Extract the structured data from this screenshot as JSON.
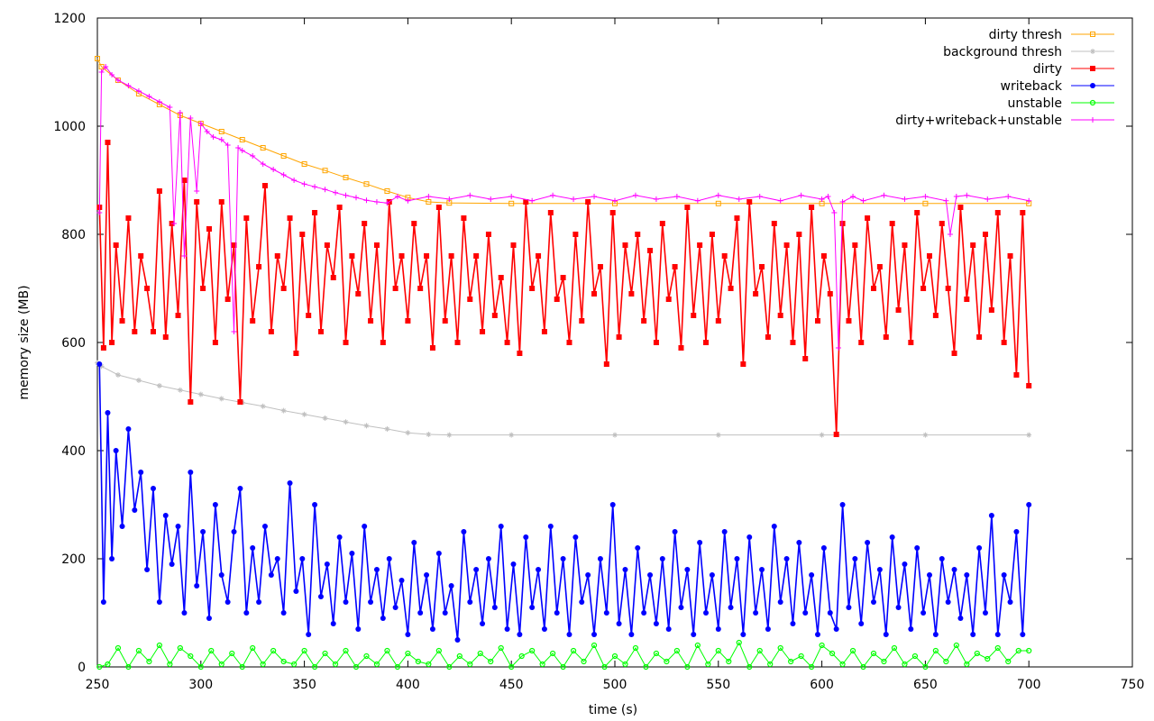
{
  "chart_data": {
    "type": "line",
    "title": "",
    "xlabel": "time (s)",
    "ylabel": "memory size (MB)",
    "xlim": [
      250,
      750
    ],
    "ylim": [
      0,
      1200
    ],
    "x_ticks": [
      250,
      300,
      350,
      400,
      450,
      500,
      550,
      600,
      650,
      700,
      750
    ],
    "y_ticks": [
      0,
      200,
      400,
      600,
      800,
      1000,
      1200
    ],
    "grid": false,
    "legend_position": "top-right",
    "series": [
      {
        "name": "dirty thresh",
        "color": "#ffa500",
        "marker": "square-open",
        "x": [
          250,
          252,
          260,
          270,
          280,
          290,
          300,
          310,
          320,
          330,
          340,
          350,
          360,
          370,
          380,
          390,
          400,
          410,
          420,
          450,
          500,
          550,
          600,
          650,
          700
        ],
        "values": [
          1125,
          1110,
          1085,
          1060,
          1040,
          1020,
          1005,
          990,
          975,
          960,
          945,
          930,
          918,
          905,
          893,
          880,
          868,
          860,
          858,
          857,
          857,
          857,
          857,
          857,
          857
        ]
      },
      {
        "name": "background thresh",
        "color": "#c0c0c0",
        "marker": "star",
        "x": [
          250,
          252,
          260,
          270,
          280,
          290,
          300,
          310,
          320,
          330,
          340,
          350,
          360,
          370,
          380,
          390,
          400,
          410,
          420,
          450,
          500,
          550,
          600,
          650,
          700
        ],
        "values": [
          562,
          556,
          540,
          530,
          520,
          512,
          504,
          496,
          489,
          482,
          474,
          467,
          460,
          453,
          446,
          440,
          433,
          430,
          429,
          429,
          429,
          429,
          429,
          429,
          429
        ]
      },
      {
        "name": "dirty",
        "color": "#ff0000",
        "marker": "square-filled",
        "x": [
          251,
          253,
          255,
          257,
          259,
          262,
          265,
          268,
          271,
          274,
          277,
          280,
          283,
          286,
          289,
          292,
          295,
          298,
          301,
          304,
          307,
          310,
          313,
          316,
          319,
          322,
          325,
          328,
          331,
          334,
          337,
          340,
          343,
          346,
          349,
          352,
          355,
          358,
          361,
          364,
          367,
          370,
          373,
          376,
          379,
          382,
          385,
          388,
          391,
          394,
          397,
          400,
          403,
          406,
          409,
          412,
          415,
          418,
          421,
          424,
          427,
          430,
          433,
          436,
          439,
          442,
          445,
          448,
          451,
          454,
          457,
          460,
          463,
          466,
          469,
          472,
          475,
          478,
          481,
          484,
          487,
          490,
          493,
          496,
          499,
          502,
          505,
          508,
          511,
          514,
          517,
          520,
          523,
          526,
          529,
          532,
          535,
          538,
          541,
          544,
          547,
          550,
          553,
          556,
          559,
          562,
          565,
          568,
          571,
          574,
          577,
          580,
          583,
          586,
          589,
          592,
          595,
          598,
          601,
          604,
          607,
          610,
          613,
          616,
          619,
          622,
          625,
          628,
          631,
          634,
          637,
          640,
          643,
          646,
          649,
          652,
          655,
          658,
          661,
          664,
          667,
          670,
          673,
          676,
          679,
          682,
          685,
          688,
          691,
          694,
          697,
          700
        ],
        "values": [
          850,
          590,
          970,
          600,
          780,
          640,
          830,
          620,
          760,
          700,
          620,
          880,
          610,
          820,
          650,
          900,
          490,
          860,
          700,
          810,
          600,
          860,
          680,
          780,
          490,
          830,
          640,
          740,
          890,
          620,
          760,
          700,
          830,
          580,
          800,
          650,
          840,
          620,
          780,
          720,
          850,
          600,
          760,
          690,
          820,
          640,
          780,
          600,
          860,
          700,
          760,
          640,
          820,
          700,
          760,
          590,
          850,
          640,
          760,
          600,
          830,
          680,
          760,
          620,
          800,
          650,
          720,
          600,
          780,
          580,
          860,
          700,
          760,
          620,
          840,
          680,
          720,
          600,
          800,
          640,
          860,
          690,
          740,
          560,
          840,
          610,
          780,
          690,
          800,
          640,
          770,
          600,
          820,
          680,
          740,
          590,
          850,
          650,
          780,
          600,
          800,
          640,
          760,
          700,
          830,
          560,
          860,
          690,
          740,
          610,
          820,
          650,
          780,
          600,
          800,
          570,
          850,
          640,
          760,
          690,
          430,
          820,
          640,
          780,
          600,
          830,
          700,
          740,
          610,
          820,
          660,
          780,
          600,
          840,
          700,
          760,
          650,
          820,
          700,
          580,
          850,
          680,
          780,
          610,
          800,
          660,
          840,
          600,
          760,
          540,
          840,
          520
        ]
      },
      {
        "name": "writeback",
        "color": "#0000ff",
        "marker": "circle-filled",
        "x": [
          251,
          253,
          255,
          257,
          259,
          262,
          265,
          268,
          271,
          274,
          277,
          280,
          283,
          286,
          289,
          292,
          295,
          298,
          301,
          304,
          307,
          310,
          313,
          316,
          319,
          322,
          325,
          328,
          331,
          334,
          337,
          340,
          343,
          346,
          349,
          352,
          355,
          358,
          361,
          364,
          367,
          370,
          373,
          376,
          379,
          382,
          385,
          388,
          391,
          394,
          397,
          400,
          403,
          406,
          409,
          412,
          415,
          418,
          421,
          424,
          427,
          430,
          433,
          436,
          439,
          442,
          445,
          448,
          451,
          454,
          457,
          460,
          463,
          466,
          469,
          472,
          475,
          478,
          481,
          484,
          487,
          490,
          493,
          496,
          499,
          502,
          505,
          508,
          511,
          514,
          517,
          520,
          523,
          526,
          529,
          532,
          535,
          538,
          541,
          544,
          547,
          550,
          553,
          556,
          559,
          562,
          565,
          568,
          571,
          574,
          577,
          580,
          583,
          586,
          589,
          592,
          595,
          598,
          601,
          604,
          607,
          610,
          613,
          616,
          619,
          622,
          625,
          628,
          631,
          634,
          637,
          640,
          643,
          646,
          649,
          652,
          655,
          658,
          661,
          664,
          667,
          670,
          673,
          676,
          679,
          682,
          685,
          688,
          691,
          694,
          697,
          700
        ],
        "values": [
          560,
          120,
          470,
          200,
          400,
          260,
          440,
          290,
          360,
          180,
          330,
          120,
          280,
          190,
          260,
          100,
          360,
          150,
          250,
          90,
          300,
          170,
          120,
          250,
          330,
          100,
          220,
          120,
          260,
          170,
          200,
          100,
          340,
          140,
          200,
          60,
          300,
          130,
          190,
          80,
          240,
          120,
          210,
          70,
          260,
          120,
          180,
          90,
          200,
          110,
          160,
          60,
          230,
          100,
          170,
          70,
          210,
          100,
          150,
          50,
          250,
          120,
          180,
          80,
          200,
          110,
          260,
          70,
          190,
          60,
          240,
          110,
          180,
          70,
          260,
          100,
          200,
          60,
          240,
          120,
          170,
          60,
          200,
          100,
          300,
          80,
          180,
          60,
          220,
          100,
          170,
          80,
          200,
          70,
          250,
          110,
          180,
          60,
          230,
          100,
          170,
          70,
          250,
          110,
          200,
          60,
          240,
          100,
          180,
          70,
          260,
          120,
          200,
          80,
          230,
          100,
          170,
          60,
          220,
          100,
          70,
          300,
          110,
          200,
          80,
          230,
          120,
          180,
          60,
          240,
          110,
          190,
          70,
          220,
          100,
          170,
          60,
          200,
          120,
          180,
          90,
          170,
          60,
          220,
          100,
          280,
          60,
          170,
          120,
          250,
          60,
          300
        ]
      },
      {
        "name": "unstable",
        "color": "#00ff00",
        "marker": "circle-open",
        "x": [
          251,
          255,
          260,
          265,
          270,
          275,
          280,
          285,
          290,
          295,
          300,
          305,
          310,
          315,
          320,
          325,
          330,
          335,
          340,
          345,
          350,
          355,
          360,
          365,
          370,
          375,
          380,
          385,
          390,
          395,
          400,
          405,
          410,
          415,
          420,
          425,
          430,
          435,
          440,
          445,
          450,
          455,
          460,
          465,
          470,
          475,
          480,
          485,
          490,
          495,
          500,
          505,
          510,
          515,
          520,
          525,
          530,
          535,
          540,
          545,
          550,
          555,
          560,
          565,
          570,
          575,
          580,
          585,
          590,
          595,
          600,
          605,
          610,
          615,
          620,
          625,
          630,
          635,
          640,
          645,
          650,
          655,
          660,
          665,
          670,
          675,
          680,
          685,
          690,
          695,
          700
        ],
        "values": [
          0,
          5,
          35,
          0,
          30,
          10,
          40,
          5,
          35,
          20,
          0,
          30,
          5,
          25,
          0,
          35,
          5,
          30,
          10,
          5,
          30,
          0,
          25,
          5,
          30,
          0,
          20,
          5,
          30,
          0,
          25,
          10,
          5,
          30,
          0,
          20,
          5,
          25,
          10,
          35,
          0,
          20,
          30,
          5,
          25,
          0,
          30,
          10,
          40,
          0,
          20,
          5,
          35,
          0,
          25,
          10,
          30,
          0,
          40,
          5,
          30,
          10,
          45,
          0,
          30,
          5,
          35,
          10,
          20,
          0,
          40,
          25,
          5,
          30,
          0,
          25,
          10,
          35,
          5,
          20,
          0,
          30,
          10,
          40,
          5,
          25,
          15,
          35,
          10,
          30,
          30
        ]
      },
      {
        "name": "dirty+writeback+unstable",
        "color": "#ff00ff",
        "marker": "plus",
        "x": [
          251,
          252,
          254,
          257,
          260,
          265,
          270,
          275,
          280,
          285,
          287,
          290,
          292,
          295,
          298,
          300,
          303,
          306,
          310,
          313,
          316,
          318,
          320,
          325,
          330,
          335,
          340,
          345,
          350,
          355,
          360,
          365,
          370,
          375,
          380,
          385,
          390,
          395,
          400,
          410,
          420,
          430,
          440,
          450,
          460,
          470,
          480,
          490,
          500,
          510,
          520,
          530,
          540,
          550,
          560,
          570,
          580,
          590,
          600,
          603,
          606,
          608,
          610,
          615,
          620,
          630,
          640,
          650,
          660,
          662,
          665,
          670,
          680,
          690,
          700
        ],
        "values": [
          840,
          1100,
          1110,
          1095,
          1085,
          1075,
          1065,
          1055,
          1045,
          1035,
          820,
          1025,
          760,
          1015,
          880,
          1005,
          990,
          980,
          975,
          965,
          620,
          960,
          955,
          945,
          930,
          920,
          910,
          900,
          893,
          888,
          883,
          877,
          872,
          868,
          863,
          860,
          858,
          870,
          862,
          870,
          865,
          872,
          865,
          870,
          862,
          872,
          865,
          870,
          862,
          872,
          865,
          870,
          862,
          872,
          865,
          870,
          862,
          872,
          865,
          870,
          840,
          590,
          860,
          870,
          862,
          872,
          865,
          870,
          862,
          800,
          870,
          872,
          865,
          870,
          862
        ]
      }
    ]
  }
}
